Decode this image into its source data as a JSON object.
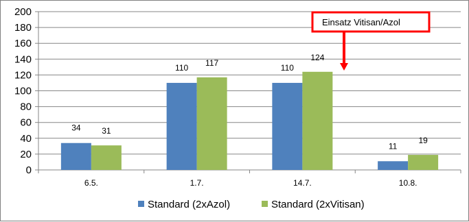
{
  "chart_data": {
    "type": "bar",
    "categories": [
      "6.5.",
      "1.7.",
      "14.7.",
      "10.8."
    ],
    "series": [
      {
        "name": "Standard (2xAzol)",
        "values": [
          34,
          110,
          110,
          11
        ],
        "color": "#4f81bd"
      },
      {
        "name": "Standard (2xVitisan)",
        "values": [
          31,
          117,
          124,
          19
        ],
        "color": "#9bbb59"
      }
    ],
    "ylim": [
      0,
      200
    ],
    "yticks": [
      0,
      20,
      40,
      60,
      80,
      100,
      120,
      140,
      160,
      180,
      200
    ],
    "grid": true,
    "legend": "bottom",
    "annotation": {
      "text": "Einsatz Vitisan/Azol",
      "box_color": "#ff0000",
      "arrow_color": "#ff0000",
      "points_to_category": "14.7."
    }
  }
}
